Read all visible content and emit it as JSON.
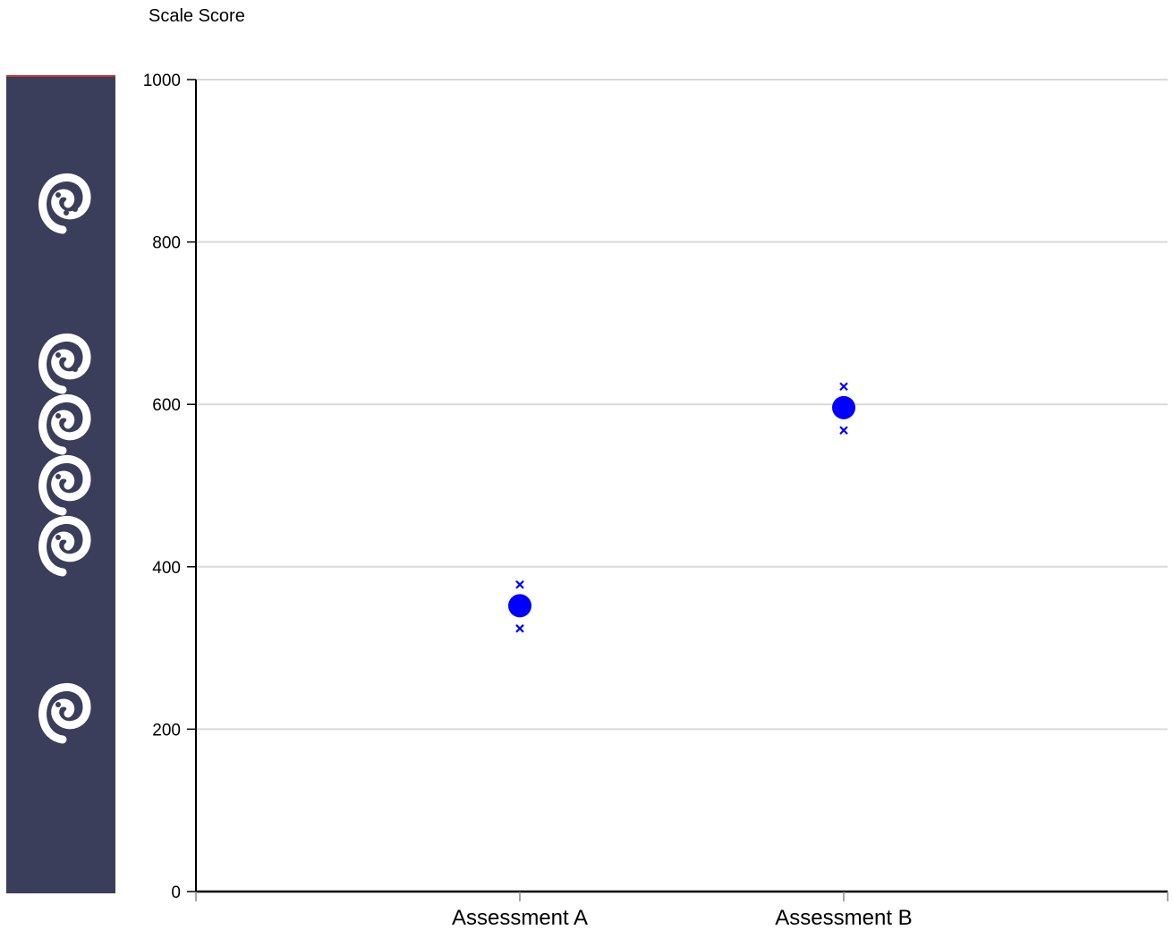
{
  "chart_data": {
    "type": "scatter",
    "title": "",
    "xlabel": "",
    "ylabel": "Scale Score",
    "ylim": [
      0,
      1000
    ],
    "yticks": [
      0,
      200,
      400,
      600,
      800,
      1000
    ],
    "grid": true,
    "categories": [
      "Assessment A",
      "Assessment B"
    ],
    "series": [
      {
        "values": [
          352,
          596
        ],
        "upper": [
          378,
          622
        ],
        "lower": [
          324,
          568
        ]
      }
    ],
    "band": {
      "levels": [
        {
          "value": 225,
          "icon": "koru-icon",
          "count": 1
        },
        {
          "value": 575,
          "icon": "koru-icon",
          "count": 4
        },
        {
          "value": 775,
          "icon": "koru-icon",
          "count": 1
        }
      ]
    },
    "colors": {
      "marker": "#0000ff",
      "band": "#3b3e5b",
      "band_top_accent": "#c0392b",
      "grid": "#d9d9d9",
      "axis": "#000000"
    }
  }
}
